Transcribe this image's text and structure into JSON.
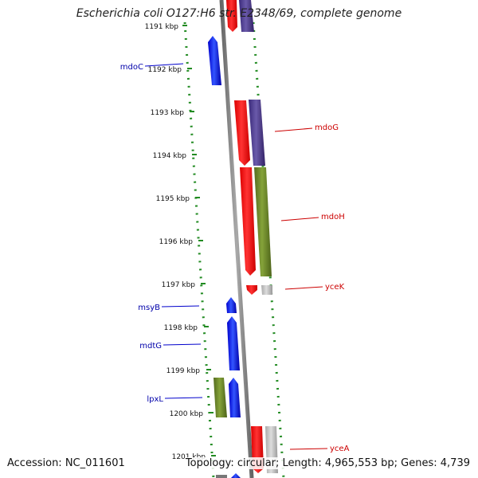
{
  "title": "Escherichia coli O127:H6 str. E2348/69, complete genome",
  "accession": "Accession: NC_011601",
  "summary": "Topology: circular; Length: 4,965,553 bp; Genes: 4,739",
  "ticks": [
    {
      "label": "1191 kbp"
    },
    {
      "label": "1192 kbp"
    },
    {
      "label": "1193 kbp"
    },
    {
      "label": "1194 kbp"
    },
    {
      "label": "1195 kbp"
    },
    {
      "label": "1196 kbp"
    },
    {
      "label": "1197 kbp"
    },
    {
      "label": "1198 kbp"
    },
    {
      "label": "1199 kbp"
    },
    {
      "label": "1200 kbp"
    },
    {
      "label": "1201 kbp"
    }
  ],
  "genes_left": [
    {
      "label": "mdoC",
      "color": "#0000aa"
    },
    {
      "label": "msyB",
      "color": "#0000aa"
    },
    {
      "label": "mdtG",
      "color": "#0000aa"
    },
    {
      "label": "lpxL",
      "color": "#0000aa"
    }
  ],
  "genes_right": [
    {
      "label": "mdoG",
      "color": "#cc0000"
    },
    {
      "label": "mdoH",
      "color": "#cc0000"
    },
    {
      "label": "yceK",
      "color": "#cc0000"
    },
    {
      "label": "yceA",
      "color": "#cc0000"
    }
  ],
  "colors": {
    "forward_cds": "#0000ee",
    "reverse_cds": "#ff0000",
    "cog_purple": "#4a3a8a",
    "cog_olive": "#6b8e23",
    "cog_gray": "#bbbbbb",
    "backbone": "#888888",
    "dotted_ring": "#228b22"
  }
}
